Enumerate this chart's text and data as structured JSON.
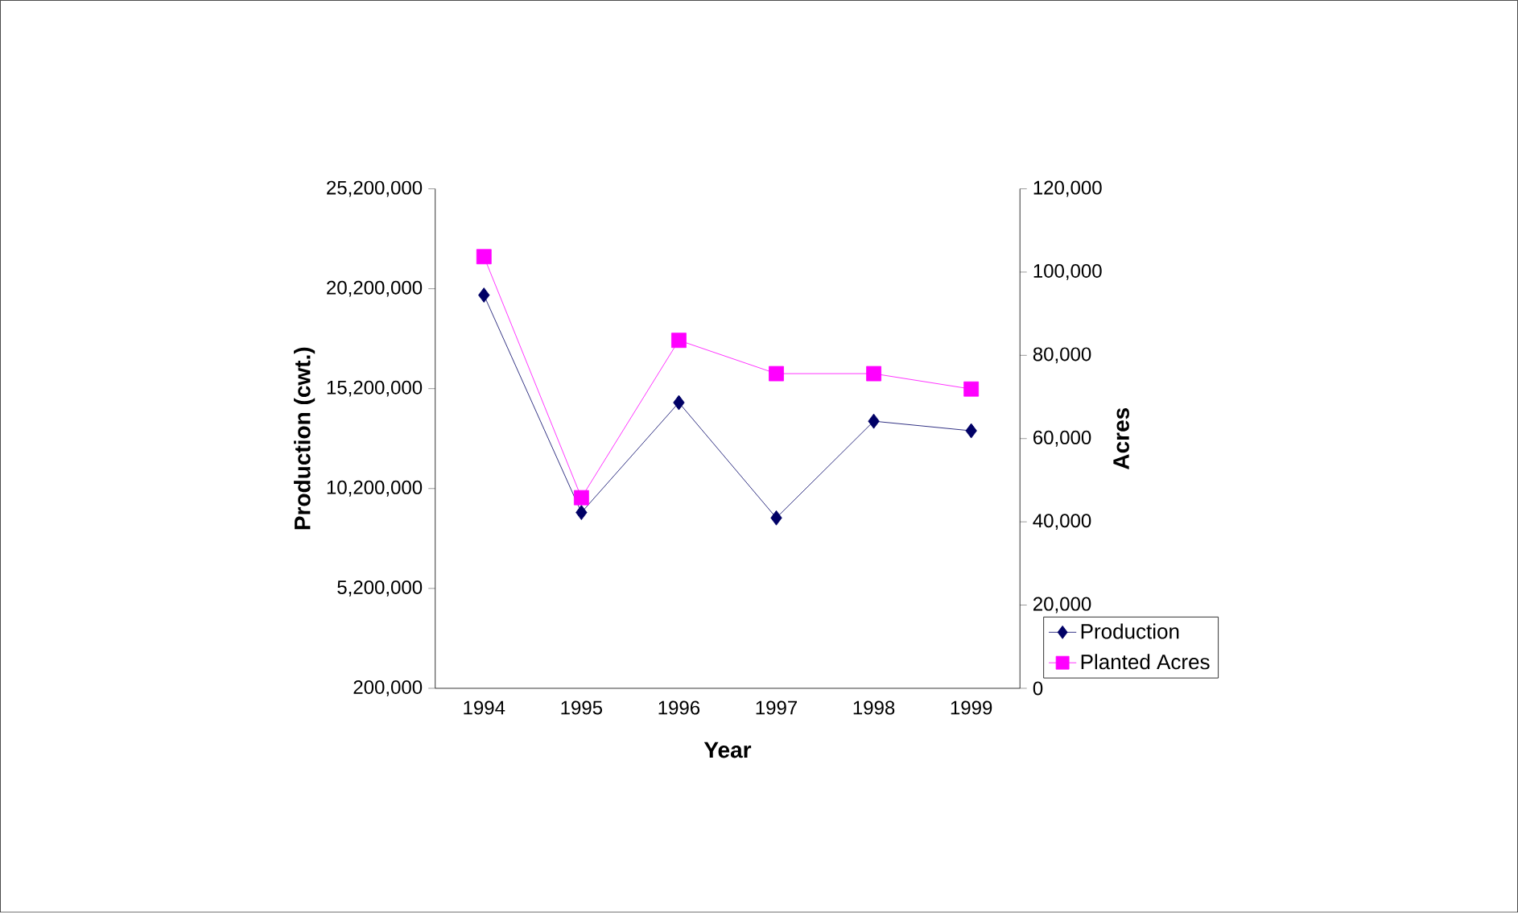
{
  "chart_data": {
    "type": "line",
    "xlabel": "Year",
    "ylabel": "Production (cwt.)",
    "y2label": "Acres",
    "categories": [
      "1994",
      "1995",
      "1996",
      "1997",
      "1998",
      "1999"
    ],
    "series": [
      {
        "name": "Production",
        "color": "#000066",
        "marker": "diamond",
        "values": [
          19880000,
          9000000,
          14500000,
          8730000,
          13570000,
          13090000
        ]
      },
      {
        "name": "Planted Acres",
        "color": "#ff00ff",
        "marker": "square",
        "axis": "y2",
        "values": [
          103700,
          45800,
          83600,
          75600,
          75600,
          71900
        ]
      }
    ],
    "ylim": [
      200000,
      25200000
    ],
    "yticks": [
      {
        "value": 200000,
        "label": "200,000"
      },
      {
        "value": 5200000,
        "label": "5,200,000"
      },
      {
        "value": 10200000,
        "label": "10,200,000"
      },
      {
        "value": 15200000,
        "label": "15,200,000"
      },
      {
        "value": 20200000,
        "label": "20,200,000"
      },
      {
        "value": 25200000,
        "label": "25,200,000"
      }
    ],
    "y2lim": [
      0,
      120000
    ],
    "y2ticks": [
      0,
      {
        "value": 20000,
        "label": "20,000"
      },
      {
        "value": 40000,
        "label": "40,000"
      },
      {
        "value": 60000,
        "label": "60,000"
      },
      {
        "value": 80000,
        "label": "80,000"
      },
      {
        "value": 100000,
        "label": "100,000"
      },
      {
        "value": 120000,
        "label": "120,000"
      }
    ],
    "legend": "right",
    "grid": false
  }
}
